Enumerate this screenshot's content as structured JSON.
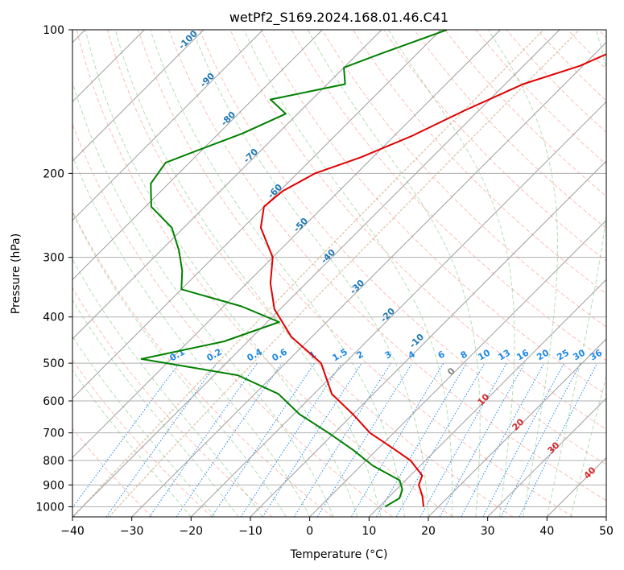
{
  "chart_data": {
    "type": "line",
    "title": "wetPf2_S169.2024.168.01.46.C41",
    "xlabel": "Temperature (°C)",
    "ylabel": "Pressure (hPa)",
    "xlim": [
      -40,
      50
    ],
    "ylim": [
      1050,
      100
    ],
    "y_scale": "log",
    "grid": true,
    "x_ticks": [
      -40,
      -30,
      -20,
      -10,
      0,
      10,
      20,
      30,
      40,
      50
    ],
    "y_ticks": [
      1000,
      900,
      800,
      700,
      600,
      500,
      400,
      300,
      200,
      100
    ],
    "colors": {
      "temperature": "#e00000",
      "dewpoint": "#008000",
      "isotherm_labels": "#1f77b4",
      "mixing_ratio": "#1e88e5",
      "moist_labels": "#d62728",
      "moist_zero": "#808080",
      "dry_adiabat": "#fa8072",
      "moist_adiabat": "#2ca02c",
      "freezing": "#d2b48c"
    },
    "series": [
      {
        "key": "temperature",
        "points": [
          [
            -26.5,
            100
          ],
          [
            -27,
            110
          ],
          [
            -30.5,
            119
          ],
          [
            -37,
            130
          ],
          [
            -42.5,
            148
          ],
          [
            -47,
            167
          ],
          [
            -52,
            185
          ],
          [
            -57,
            200
          ],
          [
            -59.5,
            218
          ],
          [
            -60,
            235
          ],
          [
            -57,
            260
          ],
          [
            -50,
            300
          ],
          [
            -46,
            340
          ],
          [
            -41,
            385
          ],
          [
            -33.5,
            440
          ],
          [
            -24,
            500
          ],
          [
            -17,
            580
          ],
          [
            -10,
            640
          ],
          [
            -4,
            700
          ],
          [
            2,
            750
          ],
          [
            7.5,
            800
          ],
          [
            12,
            860
          ],
          [
            13,
            900
          ],
          [
            15.5,
            950
          ],
          [
            17.5,
            1000
          ]
        ]
      },
      {
        "key": "dewpoint",
        "points": [
          [
            -59,
            100
          ],
          [
            -66,
            112
          ],
          [
            -70,
            120
          ],
          [
            -67,
            130
          ],
          [
            -77,
            140
          ],
          [
            -72,
            150
          ],
          [
            -76,
            165
          ],
          [
            -81,
            180
          ],
          [
            -84,
            190
          ],
          [
            -83,
            210
          ],
          [
            -79,
            235
          ],
          [
            -72,
            260
          ],
          [
            -67,
            290
          ],
          [
            -63,
            320
          ],
          [
            -60,
            350
          ],
          [
            -47,
            380
          ],
          [
            -38,
            410
          ],
          [
            -44,
            450
          ],
          [
            -55,
            490
          ],
          [
            -36,
            530
          ],
          [
            -26,
            580
          ],
          [
            -19,
            640
          ],
          [
            -11,
            700
          ],
          [
            -4,
            760
          ],
          [
            2,
            820
          ],
          [
            9,
            880
          ],
          [
            11,
            920
          ],
          [
            12,
            960
          ],
          [
            11,
            1000
          ]
        ]
      }
    ],
    "isotherm_labels": [
      "-100",
      "-90",
      "-80",
      "-70",
      "-60",
      "-50",
      "-40",
      "-30",
      "-20",
      "-10"
    ],
    "mixing_ratio_labels": [
      "0.1",
      "0.2",
      "0.4",
      "0.6",
      "1",
      "1.5",
      "2",
      "3",
      "4",
      "6",
      "8",
      "10",
      "13",
      "16",
      "20",
      "25",
      "30",
      "36"
    ],
    "moist_adiabat_labels": [
      "0",
      "10",
      "20",
      "30",
      "40"
    ]
  }
}
